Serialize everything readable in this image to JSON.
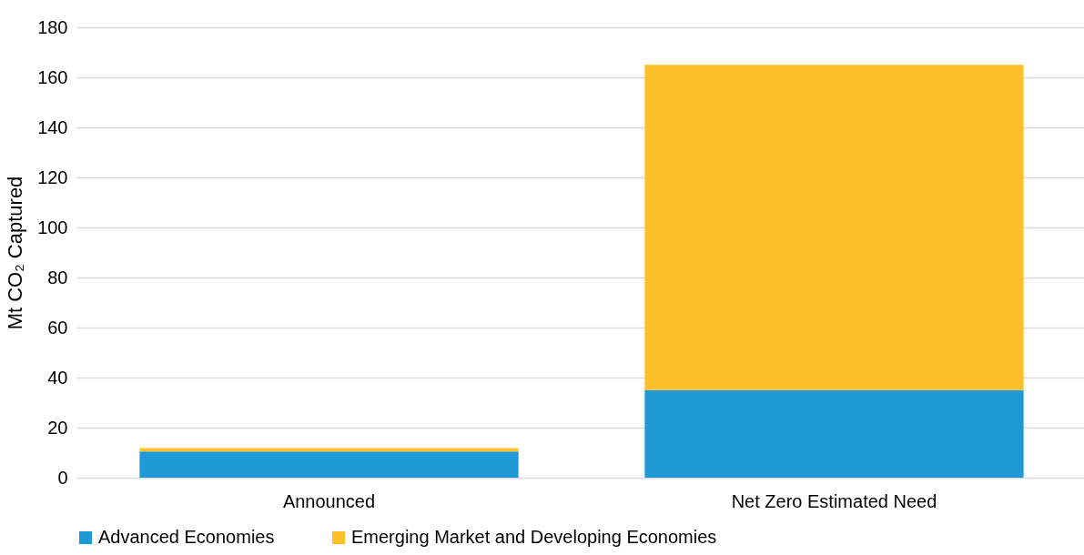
{
  "chart_data": {
    "type": "bar",
    "ylabel": "Mt CO₂ Captured",
    "categories": [
      "Announced",
      "Net Zero Estimated Need"
    ],
    "stacked": true,
    "series": [
      {
        "name": "Advanced Economies",
        "color": "#1f9ad6",
        "values": [
          10.5,
          35
        ]
      },
      {
        "name": "Emerging Market and Developing Economies",
        "color": "#fec02a",
        "values": [
          1.3,
          130
        ]
      }
    ],
    "ylim": [
      0,
      180
    ],
    "yticks": [
      0,
      20,
      40,
      60,
      80,
      100,
      120,
      140,
      160,
      180
    ],
    "grid": "y",
    "legend": "bottom"
  }
}
